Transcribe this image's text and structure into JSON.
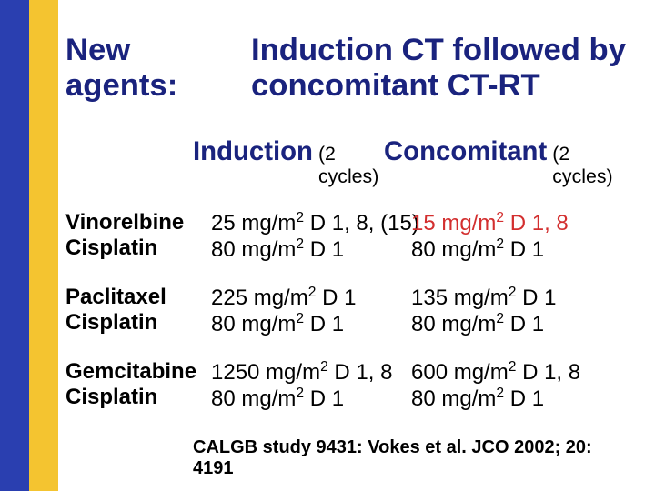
{
  "palette": {
    "blue": "#2a3fb0",
    "yellow": "#f4c430",
    "navy": "#1a237e",
    "red": "#d32f2f"
  },
  "typography": {
    "title_fontsize_pt": 26,
    "header_label_fontsize_pt": 22,
    "header_sub_fontsize_pt": 16,
    "body_fontsize_pt": 18,
    "citation_fontsize_pt": 15
  },
  "title": {
    "left": "New agents:",
    "right": "Induction CT followed by concomitant CT-RT"
  },
  "columns": {
    "induction": {
      "label": "Induction",
      "sub": "(2 cycles)"
    },
    "concomitant": {
      "label": "Concomitant",
      "sub": "(2 cycles)"
    }
  },
  "rows": [
    {
      "drug1": "Vinorelbine",
      "drug2": "Cisplatin",
      "ind_l1_pre": "25 mg/m",
      "ind_l1_post": " D 1, 8, (15)",
      "ind_l2_pre": "80 mg/m",
      "ind_l2_post": " D 1",
      "con_l1_pre": "15 mg/m",
      "con_l1_post": " D 1, 8",
      "con_l2_pre": "80 mg/m",
      "con_l2_post": " D 1",
      "con_l1_emph": true
    },
    {
      "drug1": "Paclitaxel",
      "drug2": "Cisplatin",
      "ind_l1_pre": "225 mg/m",
      "ind_l1_post": " D 1",
      "ind_l2_pre": "80 mg/m",
      "ind_l2_post": " D 1",
      "con_l1_pre": "135 mg/m",
      "con_l1_post": " D 1",
      "con_l2_pre": "80 mg/m",
      "con_l2_post": " D 1",
      "con_l1_emph": false
    },
    {
      "drug1": "Gemcitabine",
      "drug2": "Cisplatin",
      "ind_l1_pre": "1250 mg/m",
      "ind_l1_post": " D 1, 8",
      "ind_l2_pre": "80 mg/m",
      "ind_l2_post": " D 1",
      "con_l1_pre": "600 mg/m",
      "con_l1_post": " D 1, 8",
      "con_l2_pre": "80 mg/m",
      "con_l2_post": " D 1",
      "con_l1_emph": false
    }
  ],
  "citation": "CALGB study 9431: Vokes et al. JCO 2002; 20: 4191"
}
